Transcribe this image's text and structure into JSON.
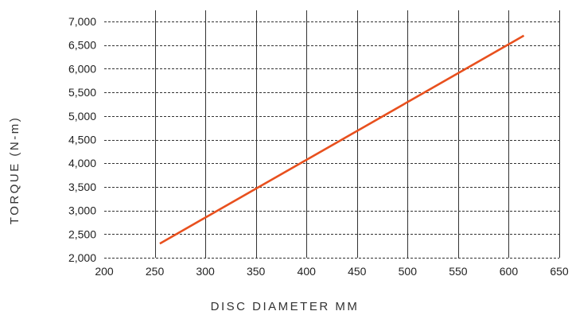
{
  "chart_data": {
    "type": "line",
    "xlabel": "DISC DIAMETER MM",
    "ylabel": "TORQUE (N-m)",
    "xlim": [
      200,
      650
    ],
    "ylim": [
      2000,
      7000
    ],
    "x_ticks": [
      200,
      250,
      300,
      350,
      400,
      450,
      500,
      550,
      600,
      650
    ],
    "x_tick_labels": [
      "200",
      "250",
      "300",
      "350",
      "400",
      "450",
      "500",
      "550",
      "600",
      "650"
    ],
    "y_ticks": [
      2000,
      2500,
      3000,
      3500,
      4000,
      4500,
      5000,
      5500,
      6000,
      6500,
      7000
    ],
    "y_tick_labels": [
      "2,000",
      "2,500",
      "3,000",
      "3,500",
      "4,000",
      "4,500",
      "5,000",
      "5,500",
      "6,000",
      "6,500",
      "7,000"
    ],
    "grid": true,
    "legend": false,
    "series": [
      {
        "color": "#e8501e",
        "x": [
          255,
          615
        ],
        "y": [
          2300,
          6700
        ]
      }
    ]
  }
}
